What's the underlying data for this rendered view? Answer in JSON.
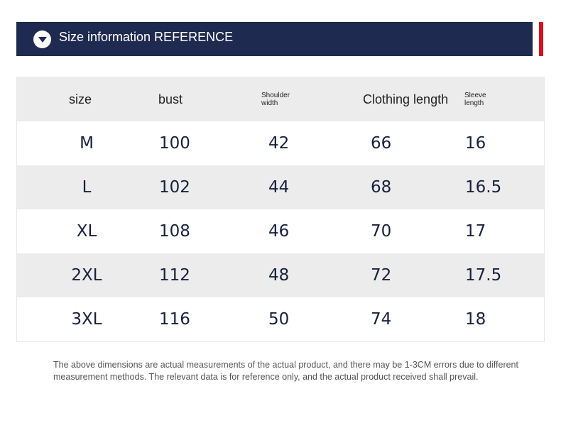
{
  "header": {
    "title": "Size information REFERENCE",
    "icon": "chevron-down-circle-icon",
    "background_color": "#1e2a4f",
    "accent_color": "#d6101e"
  },
  "table": {
    "columns": [
      "size",
      "bust",
      "Shoulder width",
      "Clothing length",
      "Sleeve length"
    ],
    "rows": [
      [
        "M",
        "100",
        "42",
        "66",
        "16"
      ],
      [
        "L",
        "102",
        "44",
        "68",
        "16.5"
      ],
      [
        "XL",
        "108",
        "46",
        "70",
        "17"
      ],
      [
        "2XL",
        "112",
        "48",
        "72",
        "17.5"
      ],
      [
        "3XL",
        "116",
        "50",
        "74",
        "18"
      ]
    ],
    "stripe_color": "#ececec"
  },
  "footnote": "The above dimensions are actual measurements of the actual product, and there may be 1-3CM errors due to different measurement methods. The relevant data is for reference only, and the actual product received shall prevail."
}
